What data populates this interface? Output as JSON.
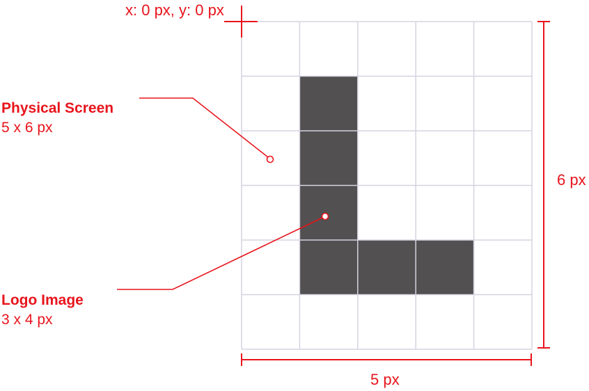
{
  "colors": {
    "accent": "#e8141c",
    "grid": "#d5d3e0",
    "fill": "#525051"
  },
  "origin_label": "x: 0 px, y: 0 px",
  "width_label": "5 px",
  "height_label": "6 px",
  "screen": {
    "title": "Physical Screen",
    "size": "5 x 6 px",
    "cols": 5,
    "rows": 6
  },
  "logo": {
    "title": "Logo Image",
    "size": "3 x 4 px",
    "filled_cells": [
      [
        1,
        1
      ],
      [
        1,
        2
      ],
      [
        1,
        3
      ],
      [
        1,
        4
      ],
      [
        2,
        4
      ],
      [
        3,
        4
      ]
    ]
  }
}
